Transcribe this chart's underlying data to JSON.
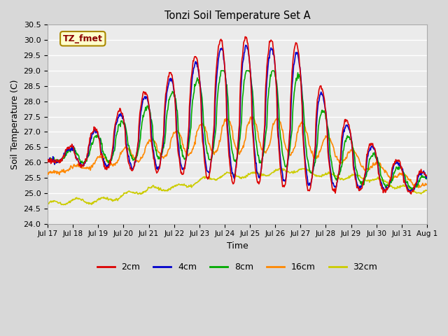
{
  "title": "Tonzi Soil Temperature Set A",
  "xlabel": "Time",
  "ylabel": "Soil Temperature (C)",
  "ylim": [
    24.0,
    30.5
  ],
  "yticks": [
    24.0,
    24.5,
    25.0,
    25.5,
    26.0,
    26.5,
    27.0,
    27.5,
    28.0,
    28.5,
    29.0,
    29.5,
    30.0,
    30.5
  ],
  "xtick_labels": [
    "Jul 17",
    "Jul 18",
    "Jul 19",
    "Jul 20",
    "Jul 21",
    "Jul 22",
    "Jul 23",
    "Jul 24",
    "Jul 25",
    "Jul 26",
    "Jul 27",
    "Jul 28",
    "Jul 29",
    "Jul 30",
    "Jul 31",
    "Aug 1"
  ],
  "colors": {
    "2cm": "#dd0000",
    "4cm": "#0000cc",
    "8cm": "#00aa00",
    "16cm": "#ff8800",
    "32cm": "#cccc00"
  },
  "legend_label": "TZ_fmet",
  "legend_box_facecolor": "#ffffcc",
  "legend_box_edgecolor": "#aa8800",
  "background_color": "#d8d8d8",
  "plot_bg_color": "#ebebeb",
  "grid_color": "#ffffff",
  "line_width": 1.2
}
